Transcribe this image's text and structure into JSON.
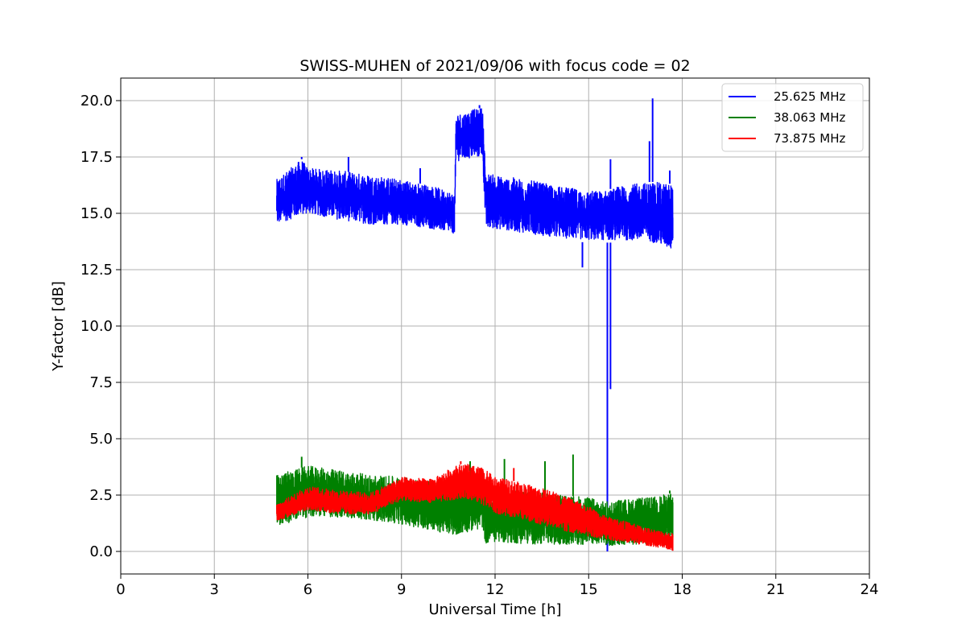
{
  "chart_data": {
    "type": "line",
    "title": "SWISS-MUHEN of 2021/09/06 with focus code = 02",
    "xlabel": "Universal Time [h]",
    "ylabel": "Y-factor [dB]",
    "xlim": [
      0,
      24
    ],
    "ylim": [
      -1.0,
      21.0
    ],
    "xticks": [
      0,
      3,
      6,
      9,
      12,
      15,
      18,
      21,
      24
    ],
    "xtick_labels": [
      "0",
      "3",
      "6",
      "9",
      "12",
      "15",
      "18",
      "21",
      "24"
    ],
    "yticks": [
      0.0,
      2.5,
      5.0,
      7.5,
      10.0,
      12.5,
      15.0,
      17.5,
      20.0
    ],
    "ytick_labels": [
      "0.0",
      "2.5",
      "5.0",
      "7.5",
      "10.0",
      "12.5",
      "15.0",
      "17.5",
      "20.0"
    ],
    "grid": true,
    "legend_position": "top-right",
    "series": [
      {
        "name": "25.625 MHz",
        "color": "#0000ff",
        "band_x": [
          5.0,
          5.8,
          6.0,
          7.0,
          8.0,
          9.0,
          10.0,
          10.7,
          10.75,
          11.6,
          11.7,
          12.0,
          13.0,
          14.0,
          15.0,
          15.5,
          16.0,
          17.0,
          17.7
        ],
        "band_low": [
          14.4,
          14.8,
          14.9,
          14.6,
          14.4,
          14.4,
          14.2,
          14.0,
          17.2,
          17.4,
          14.1,
          14.2,
          14.0,
          13.8,
          13.7,
          13.7,
          13.7,
          13.6,
          13.2
        ],
        "band_high": [
          16.5,
          17.4,
          17.0,
          16.9,
          16.7,
          16.5,
          16.2,
          15.9,
          19.4,
          19.7,
          16.8,
          16.7,
          16.5,
          16.2,
          16.0,
          16.0,
          16.2,
          16.4,
          16.3
        ],
        "spikes": [
          {
            "x": 5.8,
            "y": 17.5
          },
          {
            "x": 7.3,
            "y": 17.5
          },
          {
            "x": 9.6,
            "y": 17.0
          },
          {
            "x": 11.5,
            "y": 19.8
          },
          {
            "x": 14.8,
            "y": 12.6
          },
          {
            "x": 15.6,
            "y": 0.0
          },
          {
            "x": 15.7,
            "y": 7.2
          },
          {
            "x": 15.7,
            "y": 17.4
          },
          {
            "x": 17.05,
            "y": 20.1
          },
          {
            "x": 16.95,
            "y": 18.2
          },
          {
            "x": 17.6,
            "y": 16.9
          }
        ]
      },
      {
        "name": "38.063 MHz",
        "color": "#008000",
        "band_x": [
          5.0,
          6.0,
          7.0,
          8.0,
          9.0,
          10.0,
          10.7,
          11.6,
          11.7,
          12.0,
          13.0,
          14.0,
          15.0,
          15.5,
          16.0,
          17.0,
          17.7
        ],
        "band_low": [
          1.0,
          1.4,
          1.4,
          1.3,
          1.1,
          0.8,
          0.6,
          0.9,
          0.2,
          0.3,
          0.2,
          0.2,
          0.2,
          0.1,
          0.2,
          0.2,
          0.2
        ],
        "band_high": [
          3.4,
          3.8,
          3.6,
          3.4,
          3.3,
          3.1,
          3.0,
          3.5,
          2.8,
          2.8,
          2.7,
          2.5,
          2.4,
          2.2,
          2.3,
          2.4,
          2.6
        ],
        "spikes": [
          {
            "x": 5.8,
            "y": 4.2
          },
          {
            "x": 11.2,
            "y": 4.0
          },
          {
            "x": 12.3,
            "y": 4.1
          },
          {
            "x": 13.6,
            "y": 4.0
          },
          {
            "x": 14.5,
            "y": 4.3
          },
          {
            "x": 17.6,
            "y": 2.7
          }
        ]
      },
      {
        "name": "73.875 MHz",
        "color": "#ff0000",
        "band_x": [
          5.0,
          6.0,
          7.0,
          8.0,
          9.0,
          10.0,
          10.7,
          11.0,
          11.6,
          12.0,
          13.0,
          14.0,
          15.0,
          15.5,
          16.0,
          17.0,
          17.7
        ],
        "band_low": [
          1.3,
          1.8,
          1.6,
          1.6,
          2.2,
          2.1,
          2.2,
          2.3,
          2.0,
          1.6,
          1.3,
          0.9,
          0.6,
          0.5,
          0.4,
          0.2,
          0.0
        ],
        "band_high": [
          2.1,
          2.9,
          2.7,
          2.6,
          3.3,
          3.2,
          3.8,
          3.9,
          3.7,
          3.3,
          3.0,
          2.6,
          2.0,
          1.6,
          1.4,
          1.0,
          0.8
        ],
        "spikes": [
          {
            "x": 10.9,
            "y": 4.0
          },
          {
            "x": 12.6,
            "y": 3.7
          }
        ]
      }
    ]
  }
}
